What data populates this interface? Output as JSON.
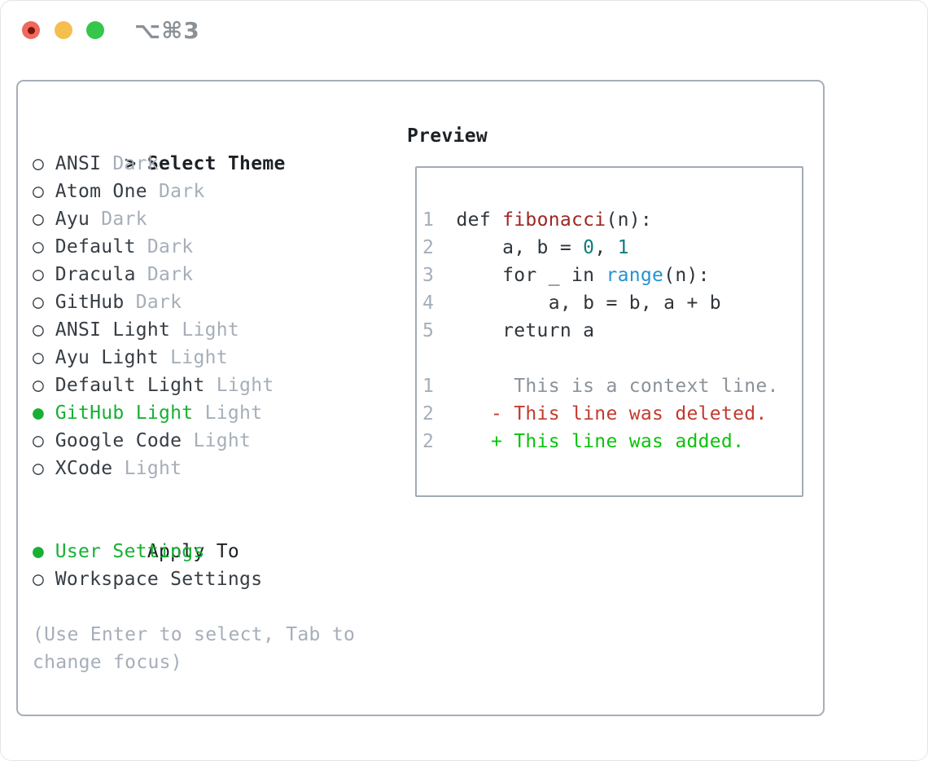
{
  "colors": {
    "accent_green": "#17b034",
    "ink_strong": "#1d2125",
    "ink": "#373d44",
    "muted": "#a6aeb9",
    "border": "#a7aeb9",
    "border_box": "#a2aab4",
    "title_gray": "#8a9095",
    "tl_red": "#ee6a5e",
    "tl_red_dot": "#7a1408",
    "tl_yellow": "#f5bf4f",
    "tl_green": "#35c64a",
    "line_number": "#a5aeba",
    "code_default": "#2f353b",
    "code_function": "#a02622",
    "code_number": "#0e7d7d",
    "code_builtin": "#2492d1",
    "diff_context": "#8b9299",
    "diff_deleted": "#c23b2e",
    "diff_added": "#0cc20c"
  },
  "window": {
    "title": "⌥⌘3"
  },
  "theme_panel": {
    "header_prefix": ">",
    "header_label": "Select Theme",
    "themes": [
      {
        "name": "ANSI",
        "tag": "Dark",
        "selected": false
      },
      {
        "name": "Atom One",
        "tag": "Dark",
        "selected": false
      },
      {
        "name": "Ayu",
        "tag": "Dark",
        "selected": false
      },
      {
        "name": "Default",
        "tag": "Dark",
        "selected": false
      },
      {
        "name": "Dracula",
        "tag": "Dark",
        "selected": false
      },
      {
        "name": "GitHub",
        "tag": "Dark",
        "selected": false
      },
      {
        "name": "ANSI Light",
        "tag": "Light",
        "selected": false
      },
      {
        "name": "Ayu Light",
        "tag": "Light",
        "selected": false
      },
      {
        "name": "Default Light",
        "tag": "Light",
        "selected": false
      },
      {
        "name": "GitHub Light",
        "tag": "Light",
        "selected": true
      },
      {
        "name": "Google Code",
        "tag": "Light",
        "selected": false
      },
      {
        "name": "XCode",
        "tag": "Light",
        "selected": false
      }
    ],
    "apply_to_label": "Apply To",
    "apply_options": [
      {
        "name": "User Settings",
        "selected": true
      },
      {
        "name": "Workspace Settings",
        "selected": false
      }
    ],
    "hint": "(Use Enter to select, Tab to change focus)",
    "radio_unselected_glyph": "○",
    "radio_selected_glyph": "●"
  },
  "preview": {
    "label": "Preview",
    "lines": [
      {
        "num": "1",
        "kind": "code",
        "tokens": [
          {
            "t": "def ",
            "c": "default"
          },
          {
            "t": "fibonacci",
            "c": "function"
          },
          {
            "t": "(n):",
            "c": "default"
          }
        ]
      },
      {
        "num": "2",
        "kind": "code",
        "tokens": [
          {
            "t": "    a, b = ",
            "c": "default"
          },
          {
            "t": "0",
            "c": "number"
          },
          {
            "t": ", ",
            "c": "default"
          },
          {
            "t": "1",
            "c": "number"
          }
        ]
      },
      {
        "num": "3",
        "kind": "code",
        "tokens": [
          {
            "t": "    for _ in ",
            "c": "default"
          },
          {
            "t": "range",
            "c": "builtin"
          },
          {
            "t": "(n):",
            "c": "default"
          }
        ]
      },
      {
        "num": "4",
        "kind": "code",
        "tokens": [
          {
            "t": "        a, b = b, a + b",
            "c": "default"
          }
        ]
      },
      {
        "num": "5",
        "kind": "code",
        "tokens": [
          {
            "t": "    return a",
            "c": "default"
          }
        ]
      },
      {
        "num": "",
        "kind": "blank",
        "tokens": []
      },
      {
        "num": "1",
        "kind": "diff",
        "tokens": [
          {
            "t": "     This is a context line.",
            "c": "context"
          }
        ]
      },
      {
        "num": "2",
        "kind": "diff",
        "tokens": [
          {
            "t": "   - This line was deleted.",
            "c": "deleted"
          }
        ]
      },
      {
        "num": "2",
        "kind": "diff",
        "tokens": [
          {
            "t": "   + This line was added.",
            "c": "added"
          }
        ]
      }
    ]
  }
}
